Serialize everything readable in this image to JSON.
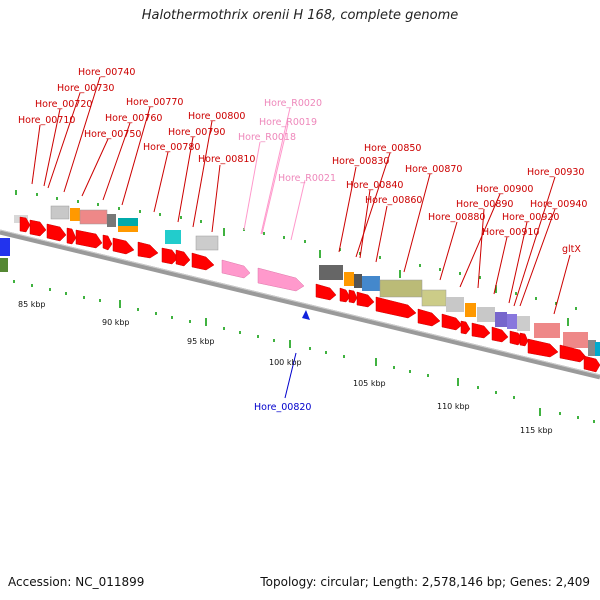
{
  "title": "Halothermothrix orenii H 168, complete genome",
  "footer": {
    "accession": "Accession: NC_011899",
    "summary": "Topology: circular; Length: 2,578,146 bp; Genes: 2,409"
  },
  "colors": {
    "cds": "#ff0000",
    "rrna": "#ff99cc",
    "label_cds": "#cc0000",
    "label_rrna": "#ee88bb",
    "label_reverse": "#0000cc",
    "backbone": "#8c8c8c",
    "tick_green": "#009900"
  },
  "ruler_ticks": [
    "85 kbp",
    "90 kbp",
    "95 kbp",
    "100 kbp",
    "105 kbp",
    "110 kbp",
    "115 kbp"
  ],
  "gene_labels": [
    {
      "text": "Hore_00740",
      "kind": "cds"
    },
    {
      "text": "Hore_00730",
      "kind": "cds"
    },
    {
      "text": "Hore_00720",
      "kind": "cds"
    },
    {
      "text": "Hore_00710",
      "kind": "cds"
    },
    {
      "text": "Hore_00770",
      "kind": "cds"
    },
    {
      "text": "Hore_00760",
      "kind": "cds"
    },
    {
      "text": "Hore_00750",
      "kind": "cds"
    },
    {
      "text": "Hore_00800",
      "kind": "cds"
    },
    {
      "text": "Hore_00790",
      "kind": "cds"
    },
    {
      "text": "Hore_00780",
      "kind": "cds"
    },
    {
      "text": "Hore_00810",
      "kind": "cds"
    },
    {
      "text": "Hore_R0020",
      "kind": "rrna"
    },
    {
      "text": "Hore_R0019",
      "kind": "rrna"
    },
    {
      "text": "Hore_R0018",
      "kind": "rrna"
    },
    {
      "text": "Hore_R0021",
      "kind": "rrna"
    },
    {
      "text": "Hore_00850",
      "kind": "cds"
    },
    {
      "text": "Hore_00830",
      "kind": "cds"
    },
    {
      "text": "Hore_00840",
      "kind": "cds"
    },
    {
      "text": "Hore_00870",
      "kind": "cds"
    },
    {
      "text": "Hore_00860",
      "kind": "cds"
    },
    {
      "text": "Hore_00930",
      "kind": "cds"
    },
    {
      "text": "Hore_00900",
      "kind": "cds"
    },
    {
      "text": "Hore_00940",
      "kind": "cds"
    },
    {
      "text": "Hore_00880",
      "kind": "cds"
    },
    {
      "text": "Hore_00890",
      "kind": "cds"
    },
    {
      "text": "Hore_00920",
      "kind": "cds"
    },
    {
      "text": "Hore_00910",
      "kind": "cds"
    },
    {
      "text": "gltX",
      "kind": "cds"
    },
    {
      "text": "Hore_00820",
      "kind": "reverse"
    }
  ]
}
